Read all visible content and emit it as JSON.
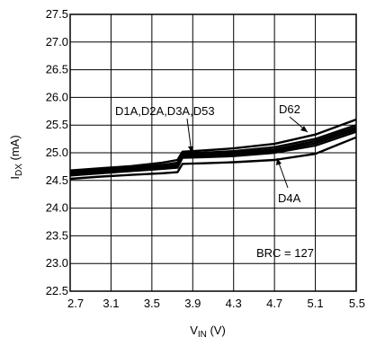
{
  "chart_data": {
    "type": "line",
    "xlabel": {
      "main": "V",
      "sub": "IN",
      "tail": " (V)"
    },
    "ylabel": {
      "main": "I",
      "sub": "DX",
      "tail": " (mA)"
    },
    "xlim": [
      2.7,
      5.5
    ],
    "ylim": [
      22.5,
      27.5
    ],
    "xticks": [
      "2.7",
      "3.1",
      "3.5",
      "3.9",
      "4.3",
      "4.7",
      "5.1",
      "5.5"
    ],
    "yticks": [
      "22.5",
      "23.0",
      "23.5",
      "24.0",
      "24.5",
      "25.0",
      "25.5",
      "26.0",
      "26.5",
      "27.0",
      "27.5"
    ],
    "grid": true,
    "series": [
      {
        "name": "D62",
        "x": [
          2.7,
          3.0,
          3.3,
          3.6,
          3.75,
          3.8,
          4.0,
          4.3,
          4.7,
          5.1,
          5.5
        ],
        "y": [
          24.68,
          24.72,
          24.76,
          24.82,
          24.87,
          25.02,
          25.04,
          25.08,
          25.16,
          25.33,
          25.6
        ]
      },
      {
        "name": "D1A",
        "x": [
          2.7,
          3.0,
          3.3,
          3.6,
          3.75,
          3.8,
          4.0,
          4.3,
          4.7,
          5.1,
          5.5
        ],
        "y": [
          24.65,
          24.69,
          24.73,
          24.78,
          24.82,
          24.99,
          25.0,
          25.03,
          25.1,
          25.25,
          25.5
        ]
      },
      {
        "name": "D2A",
        "x": [
          2.7,
          3.0,
          3.3,
          3.6,
          3.75,
          3.8,
          4.0,
          4.3,
          4.7,
          5.1,
          5.5
        ],
        "y": [
          24.63,
          24.67,
          24.71,
          24.75,
          24.78,
          24.96,
          24.97,
          25.0,
          25.06,
          25.21,
          25.46
        ]
      },
      {
        "name": "D3A",
        "x": [
          2.7,
          3.0,
          3.3,
          3.6,
          3.75,
          3.8,
          4.0,
          4.3,
          4.7,
          5.1,
          5.5
        ],
        "y": [
          24.61,
          24.65,
          24.69,
          24.73,
          24.76,
          24.94,
          24.95,
          24.97,
          25.03,
          25.17,
          25.42
        ]
      },
      {
        "name": "D53",
        "x": [
          2.7,
          3.0,
          3.3,
          3.6,
          3.75,
          3.8,
          4.0,
          4.3,
          4.7,
          5.1,
          5.5
        ],
        "y": [
          24.59,
          24.63,
          24.67,
          24.71,
          24.73,
          24.91,
          24.92,
          24.94,
          25.0,
          25.13,
          25.38
        ]
      },
      {
        "name": "D4A",
        "x": [
          2.7,
          3.0,
          3.3,
          3.6,
          3.75,
          3.8,
          4.0,
          4.3,
          4.7,
          5.1,
          5.5
        ],
        "y": [
          24.53,
          24.57,
          24.6,
          24.63,
          24.65,
          24.8,
          24.81,
          24.83,
          24.87,
          24.98,
          25.28
        ]
      }
    ],
    "annotations": [
      {
        "text": "D1A,D2A,D3A,D53"
      },
      {
        "text": "D62"
      },
      {
        "text": "D4A"
      },
      {
        "text": "BRC = 127"
      }
    ]
  }
}
